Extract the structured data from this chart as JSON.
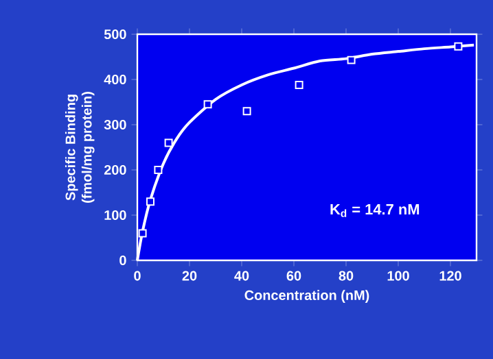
{
  "chart_data": {
    "type": "scatter",
    "xlabel": "Concentration (nM)",
    "ylabel": "Specific Binding (fmol/mg protein)",
    "xlim": [
      0,
      130
    ],
    "ylim": [
      0,
      500
    ],
    "xticks": [
      0,
      20,
      40,
      60,
      80,
      100,
      120
    ],
    "yticks": [
      0,
      100,
      200,
      300,
      400,
      500
    ],
    "grid": false,
    "annotations": [
      "K$_{d}$ = 14.7 nM"
    ],
    "series": [
      {
        "type": "line",
        "color": "#ffffff",
        "x": [
          0,
          2,
          5,
          10,
          15,
          20,
          30,
          40,
          50,
          60,
          70,
          80,
          90,
          100,
          110,
          120,
          129
        ],
        "values": [
          0,
          64,
          134,
          214,
          268,
          305,
          356,
          388,
          410,
          425,
          441,
          446,
          456,
          462,
          468,
          472,
          476
        ]
      },
      {
        "color": "#ffffff",
        "marker": "square",
        "x": [
          2,
          5,
          8,
          12,
          27,
          42,
          62,
          82,
          123
        ],
        "values": [
          60,
          130,
          200,
          260,
          345,
          330,
          388,
          443,
          473
        ]
      }
    ]
  }
}
